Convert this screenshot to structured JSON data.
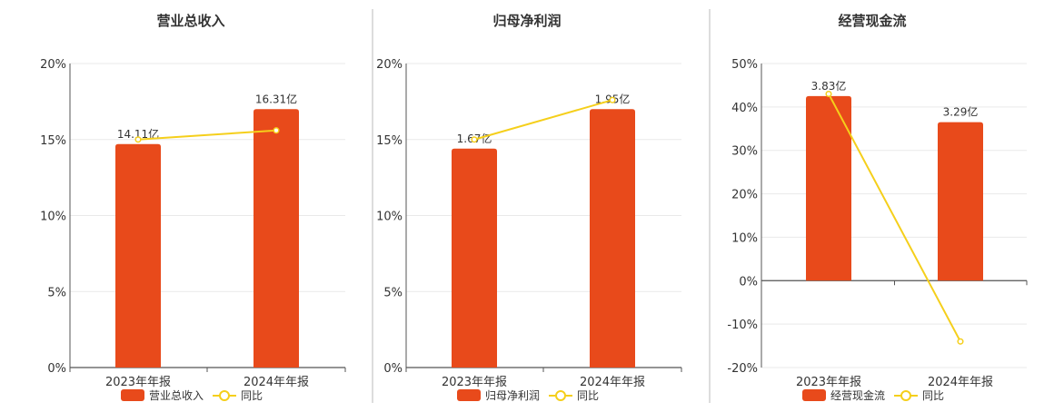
{
  "colors": {
    "bar": "#e84a1b",
    "line": "#f5cf1b",
    "grid": "#e9e9e9",
    "axis": "#555555",
    "divider": "#bbbbbb"
  },
  "chart_data": [
    {
      "type": "bar",
      "title": "营业总收入",
      "categories": [
        "2023年年报",
        "2024年年报"
      ],
      "series": [
        {
          "name": "营业总收入",
          "type": "bar",
          "values": [
            14.7,
            17.0
          ],
          "labels": [
            "14.11亿",
            "16.31亿"
          ]
        },
        {
          "name": "同比",
          "type": "line",
          "values": [
            15.0,
            15.6
          ]
        }
      ],
      "ylim": [
        0,
        20
      ],
      "yticks": [
        0,
        5,
        10,
        15,
        20
      ],
      "ytick_labels": [
        "0%",
        "5%",
        "10%",
        "15%",
        "20%"
      ],
      "grid": true,
      "legend": "bottom"
    },
    {
      "type": "bar",
      "title": "归母净利润",
      "categories": [
        "2023年年报",
        "2024年年报"
      ],
      "series": [
        {
          "name": "归母净利润",
          "type": "bar",
          "values": [
            14.4,
            17.0
          ],
          "labels": [
            "1.67亿",
            "1.95亿"
          ]
        },
        {
          "name": "同比",
          "type": "line",
          "values": [
            15.0,
            17.6
          ]
        }
      ],
      "ylim": [
        0,
        20
      ],
      "yticks": [
        0,
        5,
        10,
        15,
        20
      ],
      "ytick_labels": [
        "0%",
        "5%",
        "10%",
        "15%",
        "20%"
      ],
      "grid": true,
      "legend": "bottom"
    },
    {
      "type": "bar",
      "title": "经营现金流",
      "categories": [
        "2023年年报",
        "2024年年报"
      ],
      "series": [
        {
          "name": "经营现金流",
          "type": "bar",
          "values": [
            42.5,
            36.5
          ],
          "labels": [
            "3.83亿",
            "3.29亿"
          ]
        },
        {
          "name": "同比",
          "type": "line",
          "values": [
            43.0,
            -14.0
          ]
        }
      ],
      "ylim": [
        -20,
        50
      ],
      "yticks": [
        -20,
        -10,
        0,
        10,
        20,
        30,
        40,
        50
      ],
      "ytick_labels": [
        "-20%",
        "-10%",
        "0%",
        "10%",
        "20%",
        "30%",
        "40%",
        "50%"
      ],
      "grid": true,
      "legend": "bottom"
    }
  ]
}
